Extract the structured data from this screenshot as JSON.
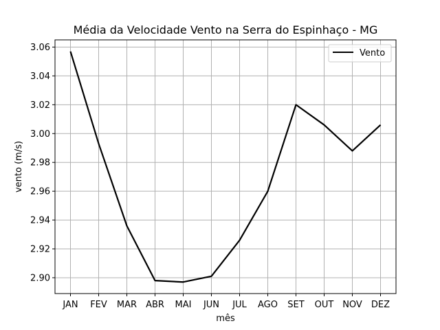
{
  "chart_data": {
    "type": "line",
    "title": "Média da Velocidade Vento na Serra do Espinhaço - MG",
    "xlabel": "mês",
    "ylabel": "vento (m/s)",
    "categories": [
      "JAN",
      "FEV",
      "MAR",
      "ABR",
      "MAI",
      "JUN",
      "JUL",
      "AGO",
      "SET",
      "OUT",
      "NOV",
      "DEZ"
    ],
    "series": [
      {
        "name": "Vento",
        "color": "#000000",
        "values": [
          3.057,
          2.993,
          2.936,
          2.898,
          2.897,
          2.901,
          2.926,
          2.96,
          3.02,
          3.006,
          2.988,
          3.006
        ]
      }
    ],
    "ylim": [
      2.889,
      3.065
    ],
    "yticks": [
      2.9,
      2.92,
      2.94,
      2.96,
      2.98,
      3.0,
      3.02,
      3.04,
      3.06
    ],
    "ytick_labels": [
      "2.90",
      "2.92",
      "2.94",
      "2.96",
      "2.98",
      "3.00",
      "3.02",
      "3.04",
      "3.06"
    ],
    "grid": true,
    "legend_position": "top-right",
    "grid_color": "#b0b0b0"
  }
}
